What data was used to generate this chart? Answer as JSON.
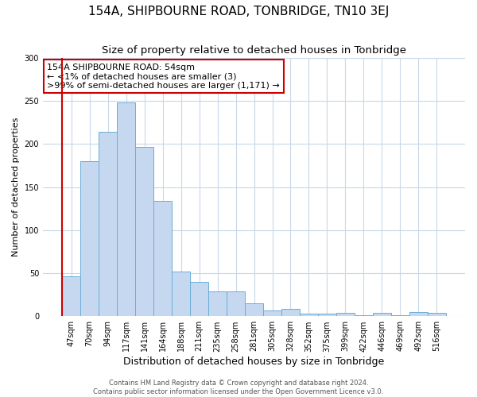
{
  "title": "154A, SHIPBOURNE ROAD, TONBRIDGE, TN10 3EJ",
  "subtitle": "Size of property relative to detached houses in Tonbridge",
  "xlabel": "Distribution of detached houses by size in Tonbridge",
  "ylabel": "Number of detached properties",
  "bar_labels": [
    "47sqm",
    "70sqm",
    "94sqm",
    "117sqm",
    "141sqm",
    "164sqm",
    "188sqm",
    "211sqm",
    "235sqm",
    "258sqm",
    "281sqm",
    "305sqm",
    "328sqm",
    "352sqm",
    "375sqm",
    "399sqm",
    "422sqm",
    "446sqm",
    "469sqm",
    "492sqm",
    "516sqm"
  ],
  "bar_values": [
    46,
    180,
    214,
    248,
    197,
    134,
    52,
    40,
    29,
    29,
    15,
    7,
    9,
    3,
    3,
    4,
    1,
    4,
    1,
    5,
    4
  ],
  "bar_color": "#c5d8f0",
  "bar_edge_color": "#6aaed6",
  "annotation_box_text": "154A SHIPBOURNE ROAD: 54sqm\n← <1% of detached houses are smaller (3)\n>99% of semi-detached houses are larger (1,171) →",
  "annotation_box_color": "#ffffff",
  "annotation_box_edge_color": "#cc0000",
  "vline_color": "#cc0000",
  "ylim": [
    0,
    300
  ],
  "yticks": [
    0,
    50,
    100,
    150,
    200,
    250,
    300
  ],
  "bg_color": "#ffffff",
  "plot_bg_color": "#ffffff",
  "grid_color": "#c8d8e8",
  "footer_line1": "Contains HM Land Registry data © Crown copyright and database right 2024.",
  "footer_line2": "Contains public sector information licensed under the Open Government Licence v3.0.",
  "title_fontsize": 11,
  "subtitle_fontsize": 9.5,
  "xlabel_fontsize": 9,
  "ylabel_fontsize": 8,
  "tick_fontsize": 7,
  "annotation_fontsize": 8,
  "footer_fontsize": 6
}
